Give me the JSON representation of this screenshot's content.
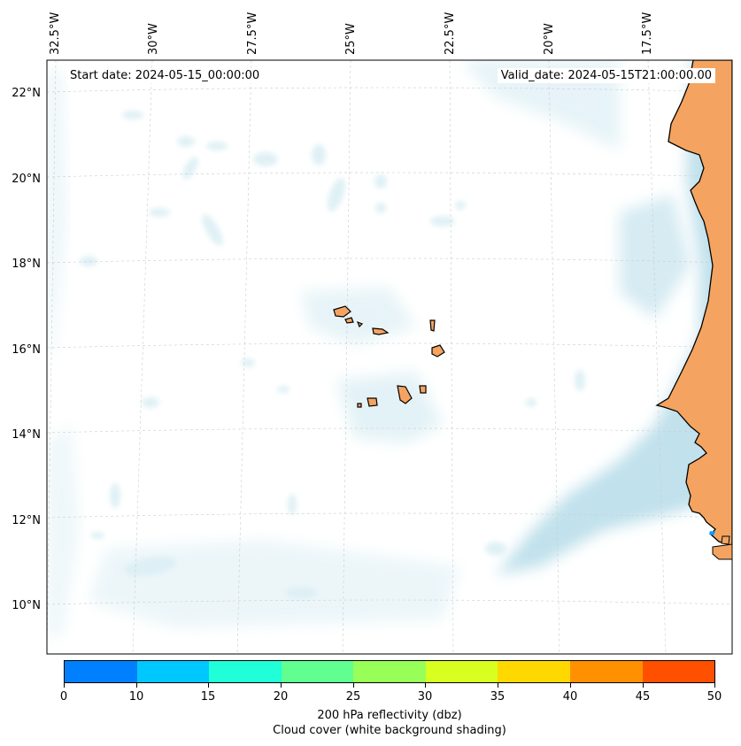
{
  "header": {
    "start_date": "Start date: 2024-05-15_00:00:00",
    "valid_date": "Valid_date: 2024-05-15T21:00:00.00"
  },
  "longitude_labels": [
    "32.5°W",
    "30°W",
    "27.5°W",
    "25°W",
    "22.5°W",
    "20°W",
    "17.5°W"
  ],
  "latitude_labels": [
    "22°N",
    "20°N",
    "18°N",
    "16°N",
    "14°N",
    "12°N",
    "10°N"
  ],
  "colors": {
    "land": "#f4a460",
    "cloud": "#add8e6",
    "grid": "#cccccc",
    "coast": "#000000"
  },
  "colorbar": {
    "ticks": [
      "0",
      "10",
      "15",
      "20",
      "25",
      "30",
      "35",
      "40",
      "45",
      "50"
    ],
    "colors": [
      "#0080ff",
      "#00c8ff",
      "#20ffd8",
      "#60ff90",
      "#98ff58",
      "#d8ff20",
      "#ffd800",
      "#ff9000",
      "#ff5000"
    ],
    "label_line1": "200 hPa reflectivity (dbz)",
    "label_line2": "Cloud cover (white background shading)"
  }
}
